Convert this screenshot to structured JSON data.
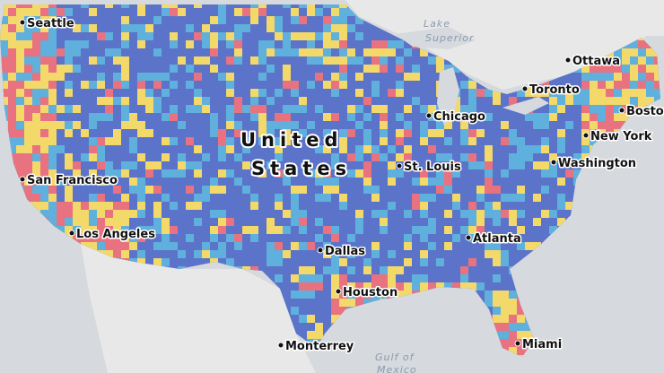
{
  "title_lines": [
    "United",
    "States"
  ],
  "cities": [
    "Seattle",
    "Ottawa",
    "Toronto",
    "Boston",
    "Chicago",
    "New York",
    "St. Louis",
    "Washington",
    "San Francisco",
    "Los Angeles",
    "Dallas",
    "Atlanta",
    "Houston",
    "Monterrey",
    "Miami"
  ],
  "water": [
    [
      "Lake",
      "Superior"
    ],
    [
      "Gulf of",
      "Mexico"
    ]
  ]
}
